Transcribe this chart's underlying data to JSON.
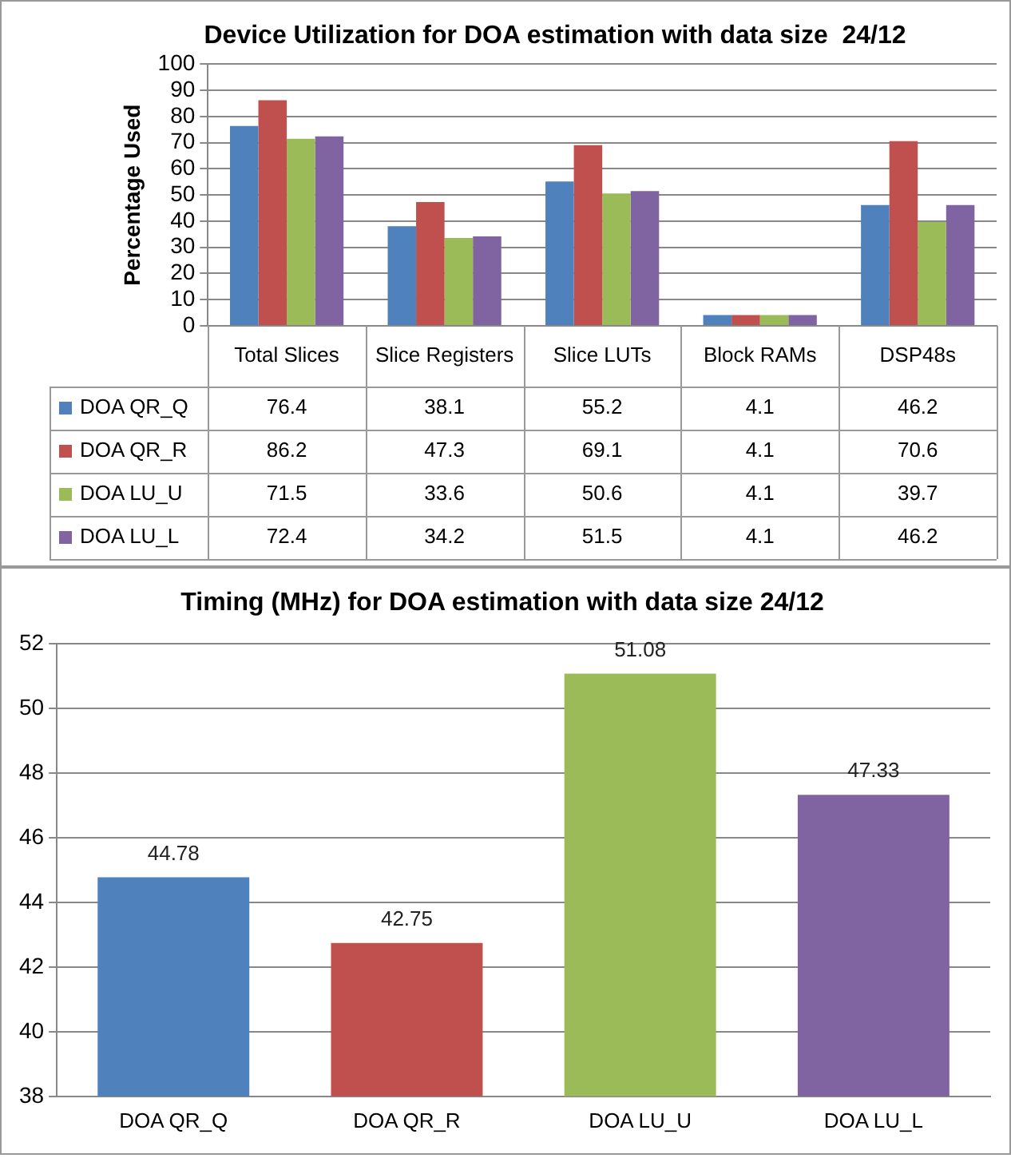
{
  "chart_data": [
    {
      "type": "bar",
      "title": "Device Utilization for DOA estimation with data size  24/12",
      "ylabel": "Percentage Used",
      "categories": [
        "Total Slices",
        "Slice Registers",
        "Slice LUTs",
        "Block RAMs",
        "DSP48s"
      ],
      "series": [
        {
          "name": "DOA QR_Q",
          "color": "#4f81bd",
          "values": [
            76.4,
            38.1,
            55.2,
            4.1,
            46.2
          ]
        },
        {
          "name": "DOA QR_R",
          "color": "#c0504d",
          "values": [
            86.2,
            47.3,
            69.1,
            4.1,
            70.6
          ]
        },
        {
          "name": "DOA LU_U",
          "color": "#9bbb59",
          "values": [
            71.5,
            33.6,
            50.6,
            4.1,
            39.7
          ]
        },
        {
          "name": "DOA LU_L",
          "color": "#8064a2",
          "values": [
            72.4,
            34.2,
            51.5,
            4.1,
            46.2
          ]
        }
      ],
      "ylim": [
        0,
        100
      ],
      "yticks": [
        0,
        10,
        20,
        30,
        40,
        50,
        60,
        70,
        80,
        90,
        100
      ],
      "grid": "y",
      "legend": "bottom",
      "data_labels": true
    },
    {
      "type": "bar",
      "title": "Timing (MHz) for DOA estimation with data size 24/12",
      "categories": [
        "DOA QR_Q",
        "DOA QR_R",
        "DOA LU_U",
        "DOA LU_L"
      ],
      "values": [
        44.78,
        42.75,
        51.08,
        47.33
      ],
      "colors": [
        "#4f81bd",
        "#c0504d",
        "#9bbb59",
        "#8064a2"
      ],
      "ylim": [
        38,
        52
      ],
      "yticks": [
        38,
        40,
        42,
        44,
        46,
        48,
        50,
        52
      ],
      "grid": "y",
      "data_labels": true
    }
  ]
}
